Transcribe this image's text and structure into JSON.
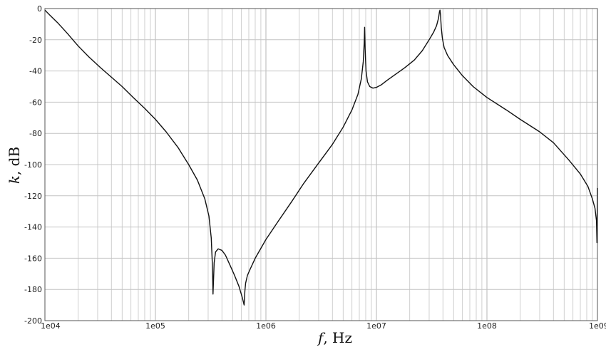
{
  "chart_data": {
    "type": "line",
    "xscale": "log",
    "xlim": [
      10000,
      1000000000
    ],
    "ylim": [
      -200,
      0
    ],
    "grid": true,
    "xlabel_var": "f",
    "xlabel_unit": ", Hz",
    "ylabel_var": "k",
    "ylabel_unit": ", dB",
    "xticks": [
      {
        "value": 10000,
        "label": "1e04"
      },
      {
        "value": 100000,
        "label": "1e05"
      },
      {
        "value": 1000000,
        "label": "1e06"
      },
      {
        "value": 10000000,
        "label": "1e07"
      },
      {
        "value": 100000000,
        "label": "1e08"
      },
      {
        "value": 1000000000,
        "label": "1e09"
      }
    ],
    "yticks": [
      {
        "value": 0,
        "label": "0"
      },
      {
        "value": -20,
        "label": "-20"
      },
      {
        "value": -40,
        "label": "-40"
      },
      {
        "value": -60,
        "label": "-60"
      },
      {
        "value": -80,
        "label": "-80"
      },
      {
        "value": -100,
        "label": "-100"
      },
      {
        "value": -120,
        "label": "-120"
      },
      {
        "value": -140,
        "label": "-140"
      },
      {
        "value": -160,
        "label": "-160"
      },
      {
        "value": -180,
        "label": "-180"
      },
      {
        "value": -200,
        "label": "-200"
      }
    ],
    "series": [
      {
        "color": "#111111",
        "x": [
          10000,
          11000,
          13000,
          16000,
          20000,
          25000,
          32000,
          40000,
          50000,
          63000,
          80000,
          100000,
          125000,
          160000,
          200000,
          240000,
          280000,
          305000,
          320000,
          328000,
          332000,
          340000,
          350000,
          370000,
          400000,
          430000,
          470000,
          520000,
          570000,
          610000,
          635000,
          645000,
          655000,
          680000,
          720000,
          800000,
          1000000,
          1300000,
          1700000,
          2200000,
          3000000,
          4000000,
          5000000,
          6000000,
          6800000,
          7300000,
          7600000,
          7750000,
          7820000,
          7900000,
          8050000,
          8300000,
          8700000,
          9300000,
          10000000,
          11000000,
          12500000,
          15000000,
          18000000,
          22000000,
          26000000,
          30000000,
          33000000,
          35000000,
          36500000,
          37200000,
          37600000,
          38000000,
          38600000,
          39500000,
          41000000,
          44000000,
          50000000,
          60000000,
          75000000,
          100000000,
          150000000,
          200000000,
          300000000,
          400000000,
          550000000,
          700000000,
          820000000,
          900000000,
          950000000,
          980000000,
          990000000,
          995000000,
          1000000000
        ],
        "y": [
          -1,
          -4,
          -9,
          -16,
          -24,
          -31,
          -38,
          -44,
          -50,
          -57,
          -64,
          -71,
          -79,
          -89,
          -100,
          -110,
          -122,
          -133,
          -147,
          -165,
          -183,
          -163,
          -156,
          -154,
          -155,
          -158,
          -164,
          -171,
          -178,
          -185,
          -190,
          -181,
          -176,
          -171,
          -167,
          -160,
          -148,
          -136,
          -124,
          -112,
          -99,
          -87,
          -76,
          -65,
          -55,
          -45,
          -34,
          -22,
          -12,
          -26,
          -40,
          -47,
          -50,
          -51,
          -50.5,
          -49,
          -46,
          -42,
          -38,
          -33,
          -27,
          -20,
          -15,
          -11,
          -6,
          -2,
          -1,
          -4,
          -12,
          -19,
          -25,
          -30,
          -36,
          -43,
          -50,
          -57,
          -65,
          -71,
          -79,
          -86,
          -97,
          -106,
          -114,
          -122,
          -128,
          -136,
          -150,
          -131,
          -115
        ]
      }
    ]
  }
}
